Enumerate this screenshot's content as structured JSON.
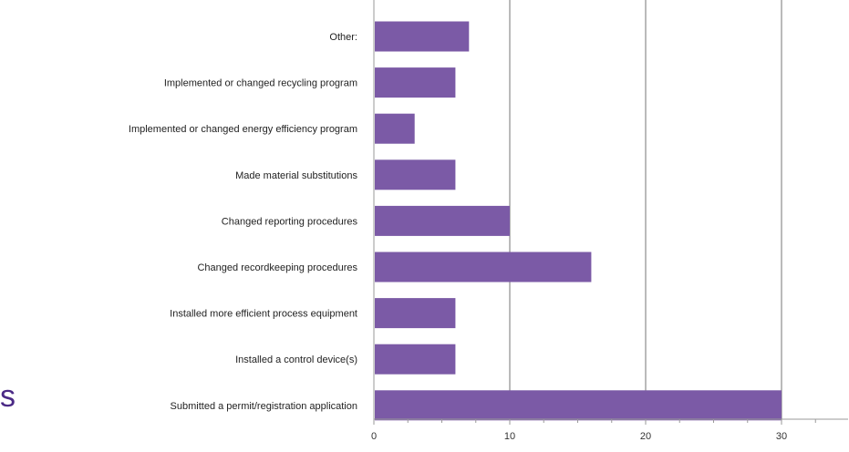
{
  "colors": {
    "bar": "#7b5aa6",
    "gridline": "#8c8c8c",
    "axis": "#9a9a9a",
    "edge_text": "#4b2a86"
  },
  "edge_text": "s",
  "chart_data": {
    "type": "bar",
    "orientation": "horizontal",
    "title": "",
    "xlabel": "",
    "ylabel": "",
    "categories": [
      "Other:",
      "Implemented or changed recycling program",
      "Implemented or changed energy efficiency program",
      "Made material substitutions",
      "Changed reporting procedures",
      "Changed recordkeeping procedures",
      "Installed more efficient process equipment",
      "Installed a control device(s)",
      "Submitted a permit/registration application"
    ],
    "values": [
      7,
      6,
      3,
      6,
      10,
      16,
      6,
      6,
      30
    ],
    "xlim": [
      0,
      35
    ],
    "x_ticks": [
      "0",
      "10",
      "20",
      "30"
    ],
    "x_tick_values": [
      0,
      10,
      20,
      30
    ],
    "grid": "vertical",
    "legend": "none"
  }
}
